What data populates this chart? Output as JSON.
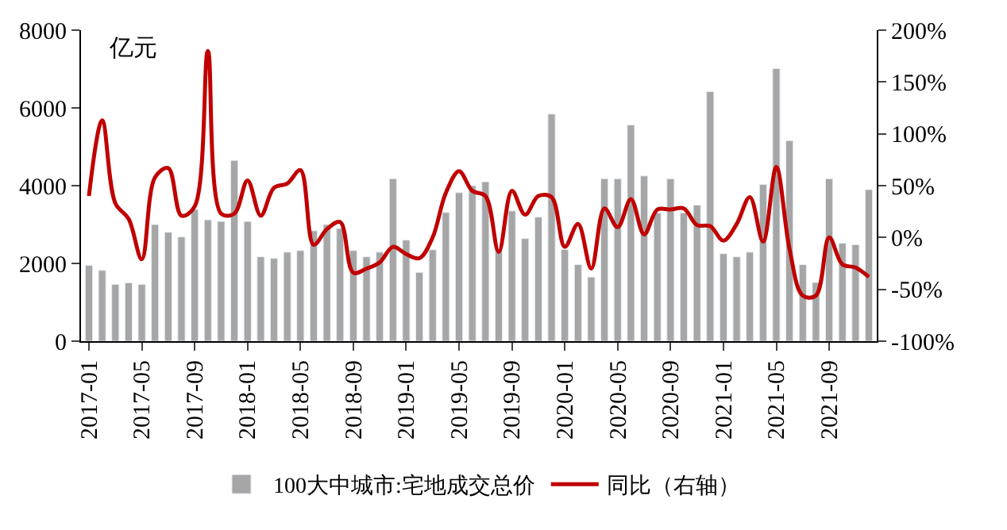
{
  "chart_data": {
    "type": "bar",
    "ylabel": "亿元",
    "categories": [
      "2017-01",
      null,
      null,
      null,
      "2017-05",
      null,
      null,
      null,
      "2017-09",
      null,
      null,
      null,
      "2018-01",
      null,
      null,
      null,
      "2018-05",
      null,
      null,
      null,
      "2018-09",
      null,
      null,
      null,
      "2019-01",
      null,
      null,
      null,
      "2019-05",
      null,
      null,
      null,
      "2019-09",
      null,
      null,
      null,
      "2020-01",
      null,
      null,
      null,
      "2020-05",
      null,
      null,
      null,
      "2020-09",
      null,
      null,
      null,
      "2021-01",
      null,
      null,
      null,
      "2021-05",
      null,
      null,
      null,
      "2021-09",
      null,
      null,
      null
    ],
    "series": [
      {
        "name": "100大中城市:宅地成交总价",
        "color": "#a6a6a6",
        "values": [
          1950,
          1820,
          1460,
          1500,
          1460,
          3000,
          2800,
          2680,
          3390,
          3120,
          3080,
          4650,
          3080,
          2170,
          2130,
          2290,
          2330,
          2840,
          3000,
          2900,
          2330,
          2170,
          2290,
          4180,
          2600,
          1770,
          2350,
          3310,
          3820,
          4000,
          4100,
          2350,
          3350,
          2640,
          3190,
          5840,
          2360,
          1970,
          1650,
          4180,
          4180,
          5560,
          4250,
          3300,
          4180,
          3300,
          3500,
          6420,
          2250,
          2170,
          2290,
          4030,
          7010,
          5160,
          1970,
          1510,
          4180,
          2520,
          2480,
          3900
        ]
      },
      {
        "name": "同比（右轴）",
        "type": "line",
        "axis": "y2",
        "color": "#c00000",
        "values": [
          40,
          113,
          33,
          18,
          -21,
          58,
          67,
          21,
          30,
          180,
          23,
          23,
          55,
          21,
          48,
          52,
          65,
          -7,
          8,
          15,
          -34,
          -30,
          -24,
          -9,
          -16,
          -20,
          0,
          43,
          64,
          45,
          40,
          -14,
          45,
          22,
          40,
          39,
          -9,
          13,
          -30,
          28,
          10,
          37,
          3,
          27,
          27,
          28,
          12,
          11,
          -3,
          13,
          39,
          -4,
          68,
          -11,
          -56,
          -56,
          0,
          -26,
          -29,
          -38
        ]
      }
    ],
    "ylim": [
      0,
      8000
    ],
    "yticks": [
      0,
      2000,
      4000,
      6000,
      8000
    ],
    "y2lim": [
      -100,
      200
    ],
    "y2ticks": [
      {
        "value": -100,
        "label": "-100%"
      },
      {
        "value": -50,
        "label": "-50%"
      },
      {
        "value": 0,
        "label": "0%"
      },
      {
        "value": 50,
        "label": "50%"
      },
      {
        "value": 100,
        "label": "100%"
      },
      {
        "value": 150,
        "label": "150%"
      },
      {
        "value": 200,
        "label": "200%"
      }
    ],
    "legend": "bottom"
  }
}
